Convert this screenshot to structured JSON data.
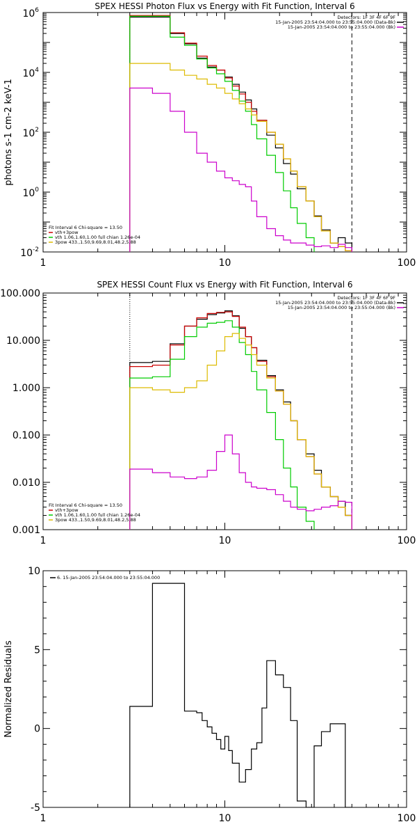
{
  "chart_data": [
    {
      "type": "line",
      "title": "SPEX HESSI Photon Flux vs Energy with Fit Function, Interval 6",
      "ylabel": "photons s-1 cm-2 keV-1",
      "xlabel": "",
      "xscale": "log",
      "yscale": "log",
      "xlim": [
        1,
        100
      ],
      "ylim": [
        0.01,
        1000000
      ],
      "grid": false,
      "x_ticks": [
        "1",
        "10",
        "100"
      ],
      "y_ticks": [
        {
          "v": 0.01,
          "label": "10^-2"
        },
        {
          "v": 1,
          "label": "10^0"
        },
        {
          "v": 100,
          "label": "10^2"
        },
        {
          "v": 10000,
          "label": "10^4"
        },
        {
          "v": 1000000,
          "label": "10^6"
        }
      ],
      "vlines": [
        {
          "x": 3,
          "style": "dotted"
        },
        {
          "x": 50,
          "style": "dashed"
        }
      ],
      "legend_top": {
        "position": "top-right",
        "header": "Detectors: 1F 3F 4F 6F 9F",
        "entries": [
          {
            "label": "15-Jan-2005 23:54:04.000 to 23:55:04.000 (Data-Bk)",
            "color": "#000000"
          },
          {
            "label": "15-Jan-2005 23:54:04.000 to 23:55:04.000 (Bk)",
            "color": "#cc00cc"
          }
        ]
      },
      "legend_bottom": {
        "position": "bottom-left",
        "header": "Fit Interval 6   Chi-square = 13.50",
        "entries": [
          {
            "label": "vth+3pow",
            "color": "#cc0000"
          },
          {
            "label": "vth 1.06,1.60,1.00  full chian 1.26e-04",
            "color": "#00cc00"
          },
          {
            "label": "3pow 433.,1.50,9.69,8.01,48.2,5.88",
            "color": "#ddbb00"
          }
        ]
      },
      "edges": [
        3,
        4,
        5,
        6,
        7,
        8,
        9,
        10,
        11,
        12,
        13,
        14,
        15,
        17,
        19,
        21,
        23,
        25,
        28,
        31,
        34,
        38,
        42,
        46,
        50
      ],
      "series": [
        {
          "name": "Data-Bk",
          "color": "#000000",
          "values": [
            700000,
            700000,
            200000,
            90000,
            30000,
            15000,
            12000,
            7000,
            4000,
            2200,
            1200,
            600,
            250,
            80,
            30,
            9,
            4,
            1.3,
            0.5,
            0.16,
            0.055,
            0.02,
            0.03,
            0.02
          ]
        },
        {
          "name": "vth+3pow",
          "color": "#cc0000",
          "values": [
            800000,
            800000,
            210000,
            95000,
            35000,
            17000,
            12000,
            6500,
            3500,
            1900,
            1000,
            500,
            250,
            100,
            40,
            13,
            5,
            1.5,
            0.5,
            0.15,
            0.05,
            0.02,
            0.015,
            0.011
          ]
        },
        {
          "name": "vth",
          "color": "#00cc00",
          "values": [
            750000,
            750000,
            150000,
            80000,
            28000,
            14000,
            9000,
            5000,
            2500,
            1100,
            500,
            180,
            60,
            17,
            4.5,
            1.1,
            0.3,
            0.09,
            0.03
          ]
        },
        {
          "name": "3pow",
          "color": "#ddbb00",
          "values": [
            20000,
            20000,
            12000,
            8000,
            6000,
            4000,
            3000,
            2000,
            1300,
            900,
            600,
            380,
            230,
            100,
            40,
            13,
            5,
            1.5,
            0.5,
            0.15,
            0.05,
            0.02,
            0.015,
            0.011
          ]
        },
        {
          "name": "Bk",
          "color": "#cc00cc",
          "values": [
            3000,
            2000,
            500,
            100,
            20,
            10,
            5,
            3,
            2.4,
            1.8,
            1.5,
            0.5,
            0.15,
            0.06,
            0.035,
            0.025,
            0.02,
            0.02,
            0.017,
            0.015,
            0.016,
            0.014,
            0.018,
            0.014
          ]
        }
      ]
    },
    {
      "type": "line",
      "title": "SPEX HESSI Count Flux vs Energy with Fit Function, Interval 6",
      "xlabel": "",
      "ylabel": "",
      "xscale": "log",
      "yscale": "log",
      "xlim": [
        1,
        100
      ],
      "ylim": [
        0.001,
        100
      ],
      "grid": false,
      "x_ticks": [
        "1",
        "10",
        "100"
      ],
      "y_ticks": [
        {
          "v": 0.001,
          "label": "0.001"
        },
        {
          "v": 0.01,
          "label": "0.010"
        },
        {
          "v": 0.1,
          "label": "0.100"
        },
        {
          "v": 1,
          "label": "1.000"
        },
        {
          "v": 10,
          "label": "10.000"
        },
        {
          "v": 100,
          "label": "100.000"
        }
      ],
      "vlines": [
        {
          "x": 3,
          "style": "dotted"
        },
        {
          "x": 50,
          "style": "dashed"
        }
      ],
      "legend_top": {
        "position": "top-right",
        "header": "Detectors: 1F 3F 4F 6F 9F",
        "entries": [
          {
            "label": "15-Jan-2005 23:54:04.000 to 23:55:04.000 (Data-Bk)",
            "color": "#000000"
          },
          {
            "label": "15-Jan-2005 23:54:04.000 to 23:55:04.000 (Bk)",
            "color": "#cc00cc"
          }
        ]
      },
      "legend_bottom": {
        "position": "bottom-left",
        "header": "Fit Interval 6   Chi-square = 13.50",
        "entries": [
          {
            "label": "vth+3pow",
            "color": "#cc0000"
          },
          {
            "label": "vth 1.06,1.60,1.00  full chian 1.26e-04",
            "color": "#00cc00"
          },
          {
            "label": "3pow 433.,1.50,9.69,8.01,48.2,5.88",
            "color": "#ddbb00"
          }
        ]
      },
      "edges": [
        3,
        4,
        5,
        6,
        7,
        8,
        9,
        10,
        11,
        12,
        13,
        14,
        15,
        17,
        19,
        21,
        23,
        25,
        28,
        31,
        34,
        38,
        42,
        46,
        50
      ],
      "series": [
        {
          "name": "Data-Bk",
          "color": "#000000",
          "values": [
            3.4,
            3.6,
            8.5,
            20,
            28,
            35,
            38,
            42,
            33,
            18,
            12,
            7,
            3.8,
            1.8,
            0.9,
            0.5,
            0.2,
            0.08,
            0.04,
            0.018,
            0.008,
            0.005,
            0.004,
            0.002
          ]
        },
        {
          "name": "vth+3pow",
          "color": "#cc0000",
          "values": [
            2.8,
            3.0,
            8.0,
            20,
            30,
            37,
            39,
            40,
            32,
            19,
            12,
            7,
            3.6,
            1.7,
            0.85,
            0.45,
            0.2,
            0.08,
            0.035,
            0.015,
            0.008,
            0.005,
            0.003,
            0.002
          ]
        },
        {
          "name": "vth",
          "color": "#00cc00",
          "values": [
            1.6,
            1.7,
            4.0,
            12,
            19,
            23,
            24,
            26,
            19,
            9,
            5,
            2.2,
            0.9,
            0.3,
            0.08,
            0.02,
            0.008,
            0.003,
            0.0015
          ]
        },
        {
          "name": "3pow",
          "color": "#ddbb00",
          "values": [
            1.0,
            0.9,
            0.8,
            1.0,
            1.4,
            3.0,
            6,
            12,
            14,
            11,
            8,
            5,
            3,
            1.6,
            0.85,
            0.45,
            0.2,
            0.08,
            0.035,
            0.015,
            0.008,
            0.005,
            0.003,
            0.002
          ]
        },
        {
          "name": "Bk",
          "color": "#cc00cc",
          "values": [
            0.019,
            0.016,
            0.013,
            0.012,
            0.013,
            0.018,
            0.045,
            0.1,
            0.04,
            0.016,
            0.01,
            0.008,
            0.0075,
            0.007,
            0.0055,
            0.004,
            0.003,
            0.0027,
            0.0025,
            0.0027,
            0.003,
            0.0032,
            0.004,
            0.0038
          ]
        }
      ]
    },
    {
      "type": "line",
      "title": "",
      "ylabel": "Normalized Residuals",
      "xlabel": "",
      "xscale": "log",
      "yscale": "linear",
      "xlim": [
        1,
        100
      ],
      "ylim": [
        -5,
        10
      ],
      "grid": false,
      "x_ticks": [
        "1",
        "10",
        "100"
      ],
      "y_ticks": [
        {
          "v": -5,
          "label": "-5"
        },
        {
          "v": 0,
          "label": "0"
        },
        {
          "v": 5,
          "label": "5"
        },
        {
          "v": 10,
          "label": "10"
        }
      ],
      "legend_top": {
        "position": "top-left",
        "header": "",
        "entries": [
          {
            "label": "6. 15-Jan-2005 23:54:04.000 to 23:55:04.000",
            "color": "#000000"
          }
        ]
      },
      "edges": [
        3,
        4,
        5,
        6,
        7,
        7.5,
        8,
        8.5,
        9,
        9.5,
        10,
        10.5,
        11,
        12,
        13,
        14,
        15,
        16,
        17,
        19,
        21,
        23,
        25,
        28,
        31,
        34,
        38,
        42,
        46,
        50
      ],
      "series": [
        {
          "name": "",
          "color": "#000000",
          "values": [
            1.4,
            9.2,
            9.2,
            1.1,
            1.0,
            0.5,
            0.1,
            -0.3,
            -0.7,
            -1.3,
            -0.5,
            -1.4,
            -2.2,
            -3.4,
            -2.6,
            -1.3,
            -0.9,
            1.3,
            4.3,
            3.4,
            2.6,
            0.5,
            -4.6,
            -5.0,
            -1.1,
            -0.2,
            0.3,
            0.3,
            -5.2
          ]
        }
      ]
    }
  ]
}
